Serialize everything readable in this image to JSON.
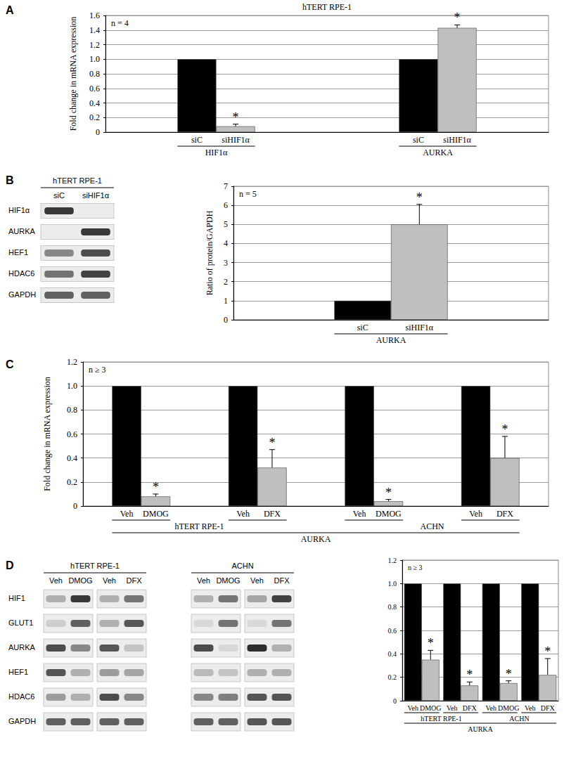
{
  "chart_data": [
    {
      "panel": "A",
      "type": "bar",
      "title": "hTERT RPE-1",
      "ylabel": "Fold change in mRNA expression",
      "annotation": "n = 4",
      "categories": [
        "HIF1α",
        "AURKA"
      ],
      "series": [
        {
          "color": "#000000",
          "labels": [
            "siC",
            "siC"
          ],
          "values": [
            1,
            1
          ],
          "errors": [
            0,
            0
          ],
          "stars": [
            null,
            null
          ]
        },
        {
          "color": "#bfbfbf",
          "labels": [
            "siHIF1α",
            "siHIF1α"
          ],
          "values": [
            0.08,
            1.43
          ],
          "errors": [
            0.03,
            0.04
          ],
          "stars": [
            "*",
            "*"
          ]
        }
      ],
      "ylim": [
        0,
        1.6
      ],
      "yticks": [
        0,
        0.2,
        0.4,
        0.6,
        0.8,
        {
          "value": 1,
          "label": "1.0"
        },
        1.2,
        1.4,
        1.6
      ],
      "grid": true
    },
    {
      "type": "bar",
      "ylabel": "Ratio of protein/GAPDH",
      "annotation": "n = 5",
      "categories": [
        "AURKA"
      ],
      "series": [
        {
          "color": "#000000",
          "labels": [
            "siC"
          ],
          "values": [
            1
          ],
          "errors": [
            0
          ],
          "stars": [
            null
          ]
        },
        {
          "color": "#bfbfbf",
          "labels": [
            "siHIF1α"
          ],
          "values": [
            5.0
          ],
          "errors": [
            1.05
          ],
          "stars": [
            "*"
          ]
        }
      ],
      "ylim": [
        0,
        7
      ],
      "yticks": [
        0,
        1,
        2,
        3,
        4,
        5,
        6,
        7
      ],
      "grid": true
    },
    {
      "panel": "C",
      "type": "bar",
      "ylabel": "Fold change in mRNA expression",
      "annotation": "n ≥ 3",
      "categories": [
        null,
        null,
        null,
        null
      ],
      "groups": [
        {
          "label": "hTERT RPE-1",
          "span": 2
        },
        {
          "label": "ACHN",
          "span": 2
        }
      ],
      "xlabel": "AURKA",
      "series": [
        {
          "color": "#000000",
          "labels": [
            "Veh",
            "Veh",
            "Veh",
            "Veh"
          ],
          "values": [
            1,
            1,
            1,
            1
          ],
          "errors": [
            0,
            0,
            0,
            0
          ],
          "stars": [
            null,
            null,
            null,
            null
          ]
        },
        {
          "color": "#bfbfbf",
          "labels": [
            "DMOG",
            "DFX",
            "DMOG",
            "DFX"
          ],
          "values": [
            0.08,
            0.32,
            0.04,
            0.4
          ],
          "errors": [
            0.02,
            0.15,
            0.015,
            0.18
          ],
          "stars": [
            "*",
            "*",
            "*",
            "*"
          ]
        }
      ],
      "ylim": [
        0,
        1.2
      ],
      "yticks": [
        0,
        0.2,
        0.4,
        0.6,
        0.8,
        {
          "value": 1,
          "label": "1.0"
        },
        1.2
      ],
      "grid": true
    },
    {
      "type": "bar",
      "annotation": "n ≥ 3",
      "categories": [
        null,
        null,
        null,
        null
      ],
      "groups": [
        {
          "label": "hTERT RPE-1",
          "span": 2
        },
        {
          "label": "ACHN",
          "span": 2
        }
      ],
      "xlabel": "AURKA",
      "series": [
        {
          "color": "#000000",
          "labels": [
            "Veh",
            "Veh",
            "Veh",
            "Veh"
          ],
          "values": [
            1,
            1,
            1,
            1
          ],
          "errors": [
            0,
            0,
            0,
            0
          ],
          "stars": [
            null,
            null,
            null,
            null
          ]
        },
        {
          "color": "#bfbfbf",
          "labels": [
            "DMOG",
            "DFX",
            "DMOG",
            "DFX"
          ],
          "values": [
            0.35,
            0.13,
            0.15,
            0.22
          ],
          "errors": [
            0.08,
            0.03,
            0.02,
            0.14
          ],
          "stars": [
            "*",
            "*",
            "*",
            "*"
          ]
        }
      ],
      "ylim": [
        0,
        1.2
      ],
      "yticks": [
        0,
        0.2,
        0.4,
        0.6,
        0.8,
        {
          "value": 1,
          "label": "1.0"
        },
        1.2
      ],
      "grid": true
    }
  ],
  "blots": [
    {
      "panel": "B",
      "rows": [
        "HIF1α",
        "AURKA",
        "HEF1",
        "HDAC6",
        "GAPDH"
      ],
      "sections": [
        {
          "title": "hTERT RPE-1",
          "pairs": [
            [
              "siC",
              "siHIF1α"
            ]
          ],
          "bands": [
            [
              0.9,
              0
            ],
            [
              0,
              0.9
            ],
            [
              0.5,
              0.8
            ],
            [
              0.6,
              0.85
            ],
            [
              0.7,
              0.7
            ]
          ]
        }
      ]
    },
    {
      "panel": "D",
      "rows": [
        "HIF1",
        "GLUT1",
        "AURKA",
        "HEF1",
        "HDAC6",
        "GAPDH"
      ],
      "sections": [
        {
          "title": "hTERT RPE-1",
          "pairs": [
            [
              "Veh",
              "DMOG"
            ],
            [
              "Veh",
              "DFX"
            ]
          ],
          "bands": [
            [
              0.3,
              0.9,
              0.3,
              0.6
            ],
            [
              0.15,
              0.7,
              0.3,
              0.75
            ],
            [
              0.8,
              0.5,
              0.75,
              0.2
            ],
            [
              0.75,
              0.3,
              0.4,
              0.35
            ],
            [
              0.4,
              0.3,
              0.8,
              0.5
            ],
            [
              0.7,
              0.7,
              0.7,
              0.7
            ]
          ]
        },
        {
          "title": "ACHN",
          "pairs": [
            [
              "Veh",
              "DMOG"
            ],
            [
              "Veh",
              "DFX"
            ]
          ],
          "bands": [
            [
              0.3,
              0.6,
              0.35,
              0.85
            ],
            [
              0.1,
              0.6,
              0.1,
              0.6
            ],
            [
              0.8,
              0.1,
              0.95,
              0.3
            ],
            [
              0.25,
              0.2,
              0.3,
              0.3
            ],
            [
              0.5,
              0.55,
              0.75,
              0.75
            ],
            [
              0.7,
              0.7,
              0.75,
              0.75
            ]
          ]
        }
      ]
    }
  ]
}
